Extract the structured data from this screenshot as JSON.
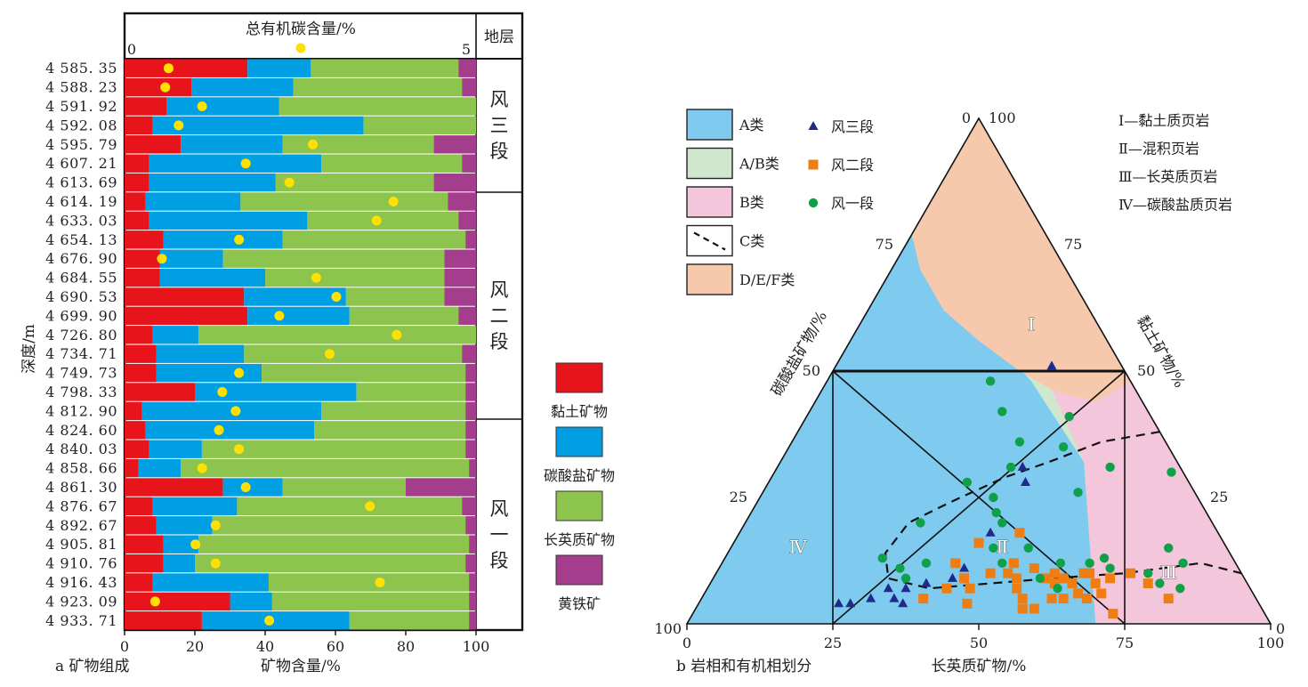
{
  "chart_data": [
    {
      "type": "stacked-bar",
      "panel_label": "a 矿物组成",
      "xlabel": "矿物含量/%",
      "ylabel": "深度/m",
      "xlim": [
        0,
        100
      ],
      "xticks": [
        "0",
        "20",
        "40",
        "60",
        "80",
        "100"
      ],
      "toc_label": "总有机碳含量/%",
      "toc_range": [
        0,
        5
      ],
      "toc_ticks": [
        "0",
        "5"
      ],
      "strata_header": "地层",
      "strata": [
        {
          "name": "风三段",
          "rows": [
            0,
            6
          ]
        },
        {
          "name": "风二段",
          "rows": [
            7,
            19
          ]
        },
        {
          "name": "风一段",
          "rows": [
            20,
            29
          ]
        }
      ],
      "series": [
        {
          "name": "黏土矿物",
          "color": "#e8141c"
        },
        {
          "name": "碳酸盐矿物",
          "color": "#009fe3"
        },
        {
          "name": "长英质矿物",
          "color": "#8dc44e"
        },
        {
          "name": "黄铁矿",
          "color": "#a43d8c"
        }
      ],
      "rows": [
        {
          "depth": "4 585. 35",
          "clay": 35,
          "carb": 18,
          "felsic": 42,
          "pyrite": 5,
          "toc": 0.55
        },
        {
          "depth": "4 588. 23",
          "clay": 19,
          "carb": 29,
          "felsic": 48,
          "pyrite": 4,
          "toc": 0.5
        },
        {
          "depth": "4 591. 92",
          "clay": 12,
          "carb": 32,
          "felsic": 56,
          "pyrite": 0,
          "toc": 1.05
        },
        {
          "depth": "4 592. 08",
          "clay": 8,
          "carb": 60,
          "felsic": 32,
          "pyrite": 0,
          "toc": 0.7
        },
        {
          "depth": "4 595. 79",
          "clay": 16,
          "carb": 29,
          "felsic": 43,
          "pyrite": 12,
          "toc": 2.7
        },
        {
          "depth": "4 607. 21",
          "clay": 7,
          "carb": 49,
          "felsic": 40,
          "pyrite": 4,
          "toc": 1.7
        },
        {
          "depth": "4 613. 69",
          "clay": 7,
          "carb": 36,
          "felsic": 45,
          "pyrite": 12,
          "toc": 2.35
        },
        {
          "depth": "4 614. 19",
          "clay": 6,
          "carb": 27,
          "felsic": 59,
          "pyrite": 8,
          "toc": 3.9
        },
        {
          "depth": "4 633. 03",
          "clay": 7,
          "carb": 45,
          "felsic": 43,
          "pyrite": 5,
          "toc": 3.65
        },
        {
          "depth": "4 654. 13",
          "clay": 11,
          "carb": 34,
          "felsic": 52,
          "pyrite": 3,
          "toc": 1.6
        },
        {
          "depth": "4 676. 90",
          "clay": 10,
          "carb": 18,
          "felsic": 63,
          "pyrite": 9,
          "toc": 0.45
        },
        {
          "depth": "4 684. 55",
          "clay": 10,
          "carb": 30,
          "felsic": 51,
          "pyrite": 9,
          "toc": 2.75
        },
        {
          "depth": "4 690. 53",
          "clay": 34,
          "carb": 29,
          "felsic": 28,
          "pyrite": 9,
          "toc": 3.05
        },
        {
          "depth": "4 699. 90",
          "clay": 35,
          "carb": 29,
          "felsic": 31,
          "pyrite": 5,
          "toc": 2.2
        },
        {
          "depth": "4 726. 80",
          "clay": 8,
          "carb": 13,
          "felsic": 79,
          "pyrite": 0,
          "toc": 3.95
        },
        {
          "depth": "4 734. 71",
          "clay": 9,
          "carb": 25,
          "felsic": 62,
          "pyrite": 4,
          "toc": 2.95
        },
        {
          "depth": "4 749. 73",
          "clay": 9,
          "carb": 30,
          "felsic": 58,
          "pyrite": 3,
          "toc": 1.6
        },
        {
          "depth": "4 798. 33",
          "clay": 20,
          "carb": 46,
          "felsic": 31,
          "pyrite": 3,
          "toc": 1.35
        },
        {
          "depth": "4 812. 90",
          "clay": 5,
          "carb": 51,
          "felsic": 41,
          "pyrite": 3,
          "toc": 1.55
        },
        {
          "depth": "4 824. 60",
          "clay": 6,
          "carb": 48,
          "felsic": 43,
          "pyrite": 3,
          "toc": 1.3
        },
        {
          "depth": "4 840. 03",
          "clay": 7,
          "carb": 15,
          "felsic": 75,
          "pyrite": 3,
          "toc": 1.6
        },
        {
          "depth": "4 858. 66",
          "clay": 4,
          "carb": 12,
          "felsic": 82,
          "pyrite": 2,
          "toc": 1.05
        },
        {
          "depth": "4 861. 30",
          "clay": 28,
          "carb": 17,
          "felsic": 35,
          "pyrite": 20,
          "toc": 1.7
        },
        {
          "depth": "4 876. 67",
          "clay": 8,
          "carb": 24,
          "felsic": 64,
          "pyrite": 4,
          "toc": 3.55
        },
        {
          "depth": "4 892. 67",
          "clay": 9,
          "carb": 16,
          "felsic": 72,
          "pyrite": 3,
          "toc": 1.25
        },
        {
          "depth": "4 905. 81",
          "clay": 11,
          "carb": 10,
          "felsic": 77,
          "pyrite": 2,
          "toc": 0.95
        },
        {
          "depth": "4 910. 76",
          "clay": 11,
          "carb": 9,
          "felsic": 77,
          "pyrite": 3,
          "toc": 1.25
        },
        {
          "depth": "4 916. 43",
          "clay": 8,
          "carb": 33,
          "felsic": 57,
          "pyrite": 2,
          "toc": 3.7
        },
        {
          "depth": "4 923. 09",
          "clay": 30,
          "carb": 12,
          "felsic": 56,
          "pyrite": 2,
          "toc": 0.35
        },
        {
          "depth": "4 933. 71",
          "clay": 22,
          "carb": 42,
          "felsic": 34,
          "pyrite": 2,
          "toc": 2.05
        }
      ]
    },
    {
      "type": "ternary-scatter",
      "panel_label": "b 岩相和有机相划分",
      "axis_bottom_label": "长英质矿物/%",
      "axis_left_label": "碳酸盐矿物/%",
      "axis_right_label": "黏土矿物/%",
      "axis_bottom_ticks": [
        "0",
        "25",
        "50",
        "75",
        "100"
      ],
      "axis_left_ticks": [
        "100",
        "75",
        "50",
        "25",
        "0"
      ],
      "axis_right_ticks": [
        "0",
        "25",
        "50",
        "75",
        "100"
      ],
      "corner_labels": {
        "bottom_left": "100",
        "bottom_right": "0",
        "top_left": "0",
        "top_right": "100"
      },
      "zone_legend": [
        {
          "label": "A类",
          "color": "#7ecbef"
        },
        {
          "label": "A/B类",
          "color": "#cfe7cd"
        },
        {
          "label": "B类",
          "color": "#f4c6dc"
        },
        {
          "label": "C类",
          "color": "none"
        },
        {
          "label": "D/E/F类",
          "color": "#f6c9ad"
        }
      ],
      "marker_legend": [
        {
          "label": "风三段",
          "marker": "triangle",
          "color": "#1f2a8c"
        },
        {
          "label": "风二段",
          "marker": "square",
          "color": "#ee7d14"
        },
        {
          "label": "风一段",
          "marker": "circle",
          "color": "#11a04a"
        }
      ],
      "facies_legend": [
        "Ⅰ—黏土质页岩",
        "Ⅱ—混积页岩",
        "Ⅲ—长英质页岩",
        "Ⅳ—碳酸盐质页岩"
      ],
      "region_labels": [
        "Ⅰ",
        "Ⅱ",
        "Ⅲ",
        "Ⅳ"
      ],
      "points": {
        "风三段": [
          {
            "felsic": 37,
            "clay": 51
          },
          {
            "felsic": 42,
            "clay": 31
          },
          {
            "felsic": 44,
            "clay": 28
          },
          {
            "felsic": 43,
            "clay": 18
          },
          {
            "felsic": 42,
            "clay": 11
          },
          {
            "felsic": 41,
            "clay": 9
          },
          {
            "felsic": 34,
            "clay": 7
          },
          {
            "felsic": 37,
            "clay": 8
          },
          {
            "felsic": 31,
            "clay": 7
          },
          {
            "felsic": 33,
            "clay": 5
          },
          {
            "felsic": 26,
            "clay": 4
          },
          {
            "felsic": 24,
            "clay": 4
          },
          {
            "felsic": 29,
            "clay": 5
          },
          {
            "felsic": 35,
            "clay": 4
          }
        ],
        "风二段": [
          {
            "felsic": 66,
            "clay": 5
          },
          {
            "felsic": 75,
            "clay": 8
          },
          {
            "felsic": 80,
            "clay": 5
          },
          {
            "felsic": 62,
            "clay": 5
          },
          {
            "felsic": 72,
            "clay": 2
          },
          {
            "felsic": 56,
            "clay": 3
          },
          {
            "felsic": 60,
            "clay": 5
          },
          {
            "felsic": 62,
            "clay": 8
          },
          {
            "felsic": 53,
            "clay": 7
          },
          {
            "felsic": 46,
            "clay": 4
          },
          {
            "felsic": 45,
            "clay": 7
          },
          {
            "felsic": 68,
            "clay": 9
          },
          {
            "felsic": 58,
            "clay": 3
          },
          {
            "felsic": 57,
            "clay": 9
          },
          {
            "felsic": 52,
            "clay": 9
          },
          {
            "felsic": 60,
            "clay": 9
          },
          {
            "felsic": 50,
            "clay": 10
          },
          {
            "felsic": 64,
            "clay": 10
          },
          {
            "felsic": 68,
            "clay": 6
          },
          {
            "felsic": 47,
            "clay": 10
          },
          {
            "felsic": 41,
            "clay": 7
          },
          {
            "felsic": 40,
            "clay": 12
          },
          {
            "felsic": 42,
            "clay": 16
          },
          {
            "felsic": 48,
            "clay": 18
          },
          {
            "felsic": 43,
            "clay": 9
          },
          {
            "felsic": 38,
            "clay": 5
          },
          {
            "felsic": 66,
            "clay": 8
          },
          {
            "felsic": 71,
            "clay": 10
          },
          {
            "felsic": 58,
            "clay": 10
          },
          {
            "felsic": 54,
            "clay": 11
          },
          {
            "felsic": 50,
            "clay": 12
          },
          {
            "felsic": 55,
            "clay": 5
          },
          {
            "felsic": 63,
            "clay": 10
          },
          {
            "felsic": 64,
            "clay": 6
          },
          {
            "felsic": 59,
            "clay": 8
          }
        ],
        "风一段": [
          {
            "felsic": 28,
            "clay": 48
          },
          {
            "felsic": 33,
            "clay": 42
          },
          {
            "felsic": 45,
            "clay": 41
          },
          {
            "felsic": 39,
            "clay": 36
          },
          {
            "felsic": 40,
            "clay": 31
          },
          {
            "felsic": 47,
            "clay": 35
          },
          {
            "felsic": 34,
            "clay": 28
          },
          {
            "felsic": 40,
            "clay": 25
          },
          {
            "felsic": 44,
            "clay": 20
          },
          {
            "felsic": 54,
            "clay": 26
          },
          {
            "felsic": 57,
            "clay": 31
          },
          {
            "felsic": 68,
            "clay": 30
          },
          {
            "felsic": 79,
            "clay": 12
          },
          {
            "felsic": 75,
            "clay": 15
          },
          {
            "felsic": 81,
            "clay": 7
          },
          {
            "felsic": 74,
            "clay": 10
          },
          {
            "felsic": 77,
            "clay": 8
          },
          {
            "felsic": 67,
            "clay": 11
          },
          {
            "felsic": 65,
            "clay": 13
          },
          {
            "felsic": 51,
            "clay": 15
          },
          {
            "felsic": 48,
            "clay": 12
          },
          {
            "felsic": 45,
            "clay": 15
          },
          {
            "felsic": 60,
            "clay": 7
          },
          {
            "felsic": 56,
            "clay": 9
          },
          {
            "felsic": 63,
            "clay": 12
          },
          {
            "felsic": 58,
            "clay": 12
          },
          {
            "felsic": 35,
            "clay": 12
          },
          {
            "felsic": 33,
            "clay": 9
          },
          {
            "felsic": 31,
            "clay": 11
          },
          {
            "felsic": 42,
            "clay": 22
          },
          {
            "felsic": 30,
            "clay": 20
          },
          {
            "felsic": 27,
            "clay": 13
          }
        ]
      }
    }
  ]
}
